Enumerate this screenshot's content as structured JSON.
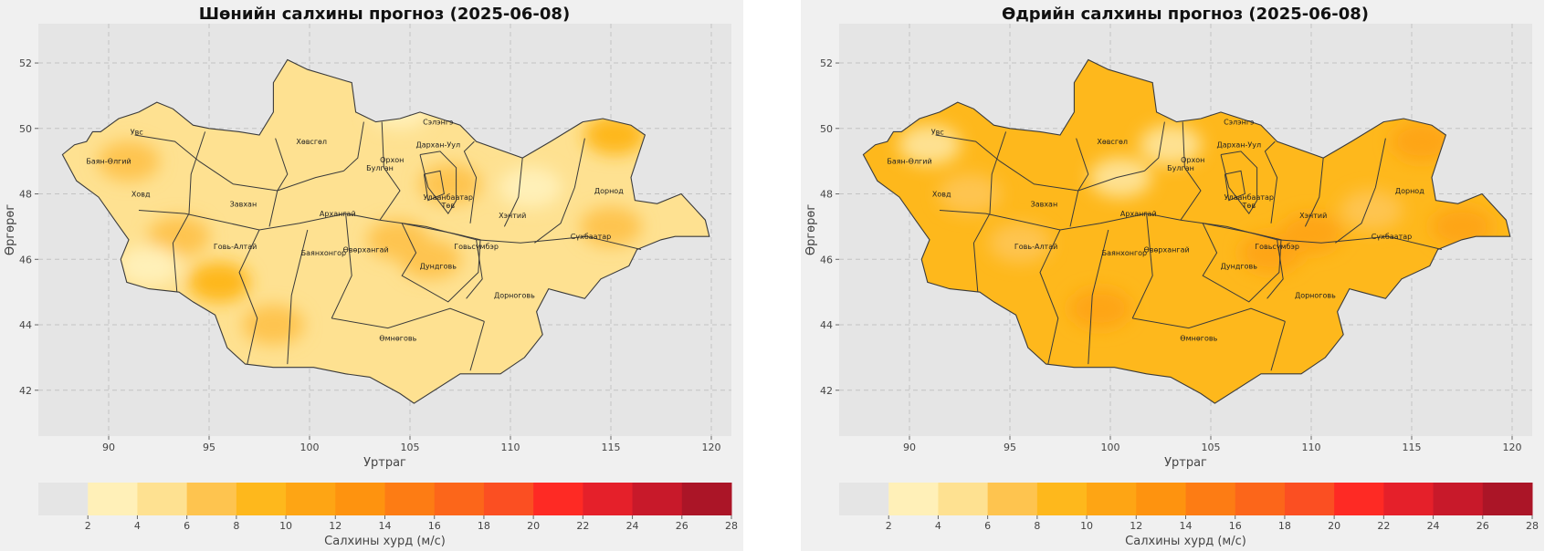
{
  "panels": [
    {
      "id": "night",
      "title": "Шөнийн салхины прогноз (2025-06-08)",
      "base_color": "#fee191",
      "patches": [
        {
          "lon": 104.5,
          "lat": 50.6,
          "c": "#fff0b8"
        },
        {
          "lon": 111,
          "lat": 48.2,
          "c": "#fff0b8"
        },
        {
          "lon": 93.5,
          "lat": 46.7,
          "c": "#fec44f"
        },
        {
          "lon": 95.5,
          "lat": 45.3,
          "c": "#feb81c"
        },
        {
          "lon": 98.2,
          "lat": 44,
          "c": "#fec44f"
        },
        {
          "lon": 106,
          "lat": 46,
          "c": "#fec44f"
        },
        {
          "lon": 115,
          "lat": 47,
          "c": "#fec44f"
        },
        {
          "lon": 104.4,
          "lat": 46.6,
          "c": "#fec44f"
        },
        {
          "lon": 107,
          "lat": 48.3,
          "c": "#fec44f"
        },
        {
          "lon": 115.2,
          "lat": 49.8,
          "c": "#feb81c"
        },
        {
          "lon": 91,
          "lat": 49,
          "c": "#fec44f"
        },
        {
          "lon": 92,
          "lat": 45.8,
          "c": "#fff0b8"
        }
      ]
    },
    {
      "id": "day",
      "title": "Өдрийн салхины прогноз (2025-06-08)",
      "base_color": "#feb81c",
      "patches": [
        {
          "lon": 103,
          "lat": 49.5,
          "c": "#fee191"
        },
        {
          "lon": 91,
          "lat": 49.5,
          "c": "#fee191"
        },
        {
          "lon": 100.5,
          "lat": 48.5,
          "c": "#fee191"
        },
        {
          "lon": 93,
          "lat": 48,
          "c": "#fec44f"
        },
        {
          "lon": 95.5,
          "lat": 46.5,
          "c": "#fec44f"
        },
        {
          "lon": 113,
          "lat": 47.5,
          "c": "#fec44f"
        },
        {
          "lon": 108,
          "lat": 46.2,
          "c": "#fea514"
        },
        {
          "lon": 110,
          "lat": 46.8,
          "c": "#fea514"
        },
        {
          "lon": 117.5,
          "lat": 47,
          "c": "#fea514"
        },
        {
          "lon": 115.5,
          "lat": 49.6,
          "c": "#fea514"
        },
        {
          "lon": 99.5,
          "lat": 44.5,
          "c": "#fea514"
        }
      ]
    }
  ],
  "map": {
    "xlabel": "Уртраг",
    "ylabel": "Өргөрөг",
    "xticks": [
      90,
      95,
      100,
      105,
      110,
      115,
      120
    ],
    "yticks": [
      42,
      44,
      46,
      48,
      50,
      52
    ],
    "lon_range": [
      86.5,
      121
    ],
    "lat_range": [
      40.6,
      53.2
    ],
    "outline": [
      [
        87.7,
        49.2
      ],
      [
        88.3,
        49.5
      ],
      [
        88.9,
        49.6
      ],
      [
        89.2,
        49.9
      ],
      [
        89.6,
        49.9
      ],
      [
        90.5,
        50.3
      ],
      [
        91.5,
        50.5
      ],
      [
        92.4,
        50.8
      ],
      [
        93.2,
        50.6
      ],
      [
        94.2,
        50.1
      ],
      [
        95,
        50
      ],
      [
        96.5,
        49.9
      ],
      [
        97.5,
        49.8
      ],
      [
        98.2,
        50.5
      ],
      [
        98.2,
        51.4
      ],
      [
        98.9,
        52.1
      ],
      [
        99.9,
        51.8
      ],
      [
        101,
        51.6
      ],
      [
        102.1,
        51.4
      ],
      [
        102.3,
        50.5
      ],
      [
        103.3,
        50.2
      ],
      [
        104.5,
        50.3
      ],
      [
        105.5,
        50.5
      ],
      [
        106.5,
        50.3
      ],
      [
        107.5,
        50.1
      ],
      [
        108.3,
        49.6
      ],
      [
        110.6,
        49.1
      ],
      [
        112,
        49.6
      ],
      [
        113.6,
        50.2
      ],
      [
        114.6,
        50.3
      ],
      [
        116,
        50.1
      ],
      [
        116.7,
        49.8
      ],
      [
        116,
        48.5
      ],
      [
        116.2,
        47.8
      ],
      [
        117.3,
        47.7
      ],
      [
        118.5,
        48
      ],
      [
        119.7,
        47.2
      ],
      [
        119.9,
        46.7
      ],
      [
        118.2,
        46.7
      ],
      [
        117.5,
        46.6
      ],
      [
        116.3,
        46.3
      ],
      [
        115.9,
        45.8
      ],
      [
        114.5,
        45.4
      ],
      [
        113.7,
        44.8
      ],
      [
        112.5,
        45
      ],
      [
        111.9,
        45.1
      ],
      [
        111.3,
        44.4
      ],
      [
        111.6,
        43.7
      ],
      [
        110.7,
        43
      ],
      [
        109.5,
        42.5
      ],
      [
        107.5,
        42.5
      ],
      [
        105.2,
        41.6
      ],
      [
        104.5,
        41.9
      ],
      [
        103,
        42.4
      ],
      [
        101.8,
        42.5
      ],
      [
        100.2,
        42.7
      ],
      [
        98.2,
        42.7
      ],
      [
        96.8,
        42.8
      ],
      [
        95.9,
        43.3
      ],
      [
        95.3,
        44.3
      ],
      [
        94.2,
        44.7
      ],
      [
        93.5,
        45
      ],
      [
        92,
        45.1
      ],
      [
        90.9,
        45.3
      ],
      [
        90.6,
        46
      ],
      [
        91,
        46.6
      ],
      [
        90.3,
        47.2
      ],
      [
        89.5,
        47.9
      ],
      [
        88.4,
        48.4
      ],
      [
        87.7,
        49.2
      ]
    ],
    "boundaries": [
      [
        [
          91.5,
          47.5
        ],
        [
          93.8,
          47.4
        ],
        [
          95.3,
          47.2
        ],
        [
          97.5,
          46.9
        ],
        [
          99.5,
          47.1
        ],
        [
          101.8,
          47.4
        ],
        [
          103.5,
          47.2
        ],
        [
          105.8,
          47
        ],
        [
          108.3,
          46.6
        ],
        [
          110.5,
          46.5
        ],
        [
          112.2,
          46.6
        ],
        [
          113.8,
          46.7
        ],
        [
          116.5,
          46.3
        ]
      ],
      [
        [
          91.3,
          49.8
        ],
        [
          93.3,
          49.6
        ],
        [
          94.5,
          49
        ],
        [
          96.2,
          48.3
        ],
        [
          98.4,
          48.1
        ],
        [
          100.3,
          48.5
        ],
        [
          101.7,
          48.7
        ]
      ],
      [
        [
          94.8,
          49.9
        ],
        [
          94.1,
          48.6
        ],
        [
          94,
          47.4
        ],
        [
          93.2,
          46.5
        ],
        [
          93.4,
          45
        ]
      ],
      [
        [
          98.3,
          49.7
        ],
        [
          98.9,
          48.6
        ],
        [
          98.4,
          48.1
        ],
        [
          98,
          47
        ]
      ],
      [
        [
          97.5,
          46.9
        ],
        [
          96.5,
          45.6
        ],
        [
          97.4,
          44.2
        ],
        [
          96.9,
          42.8
        ]
      ],
      [
        [
          99.9,
          46.9
        ],
        [
          99.1,
          44.9
        ],
        [
          98.9,
          42.8
        ]
      ],
      [
        [
          101.8,
          47.4
        ],
        [
          102.1,
          45.5
        ],
        [
          101.1,
          44.2
        ]
      ],
      [
        [
          101.1,
          44.2
        ],
        [
          103.9,
          43.9
        ],
        [
          107,
          44.5
        ],
        [
          108.7,
          44.1
        ]
      ],
      [
        [
          102.7,
          50.2
        ],
        [
          102.4,
          49.1
        ],
        [
          101.7,
          48.7
        ]
      ],
      [
        [
          103.6,
          50.2
        ],
        [
          103.7,
          48.8
        ],
        [
          104.5,
          48.1
        ],
        [
          103.5,
          47.2
        ]
      ],
      [
        [
          104.6,
          47.1
        ],
        [
          105.3,
          46.2
        ],
        [
          104.6,
          45.5
        ],
        [
          106.9,
          44.7
        ],
        [
          108.4,
          45.6
        ],
        [
          108.5,
          46.6
        ],
        [
          107.1,
          46.8
        ],
        [
          104.6,
          47.1
        ]
      ],
      [
        [
          105.5,
          49.2
        ],
        [
          106.5,
          49.3
        ],
        [
          107.3,
          48.8
        ],
        [
          107.3,
          47.8
        ],
        [
          106.9,
          47.4
        ],
        [
          105.9,
          48.2
        ],
        [
          105.5,
          49.2
        ]
      ],
      [
        [
          108.2,
          49.6
        ],
        [
          107.7,
          49.3
        ],
        [
          108.3,
          48.5
        ],
        [
          108,
          47.1
        ]
      ],
      [
        [
          110.6,
          49.1
        ],
        [
          110.4,
          47.9
        ],
        [
          109.7,
          47
        ]
      ],
      [
        [
          113.7,
          49.7
        ],
        [
          113.2,
          48.2
        ],
        [
          112.5,
          47.1
        ],
        [
          111.2,
          46.5
        ]
      ],
      [
        [
          108.3,
          46.6
        ],
        [
          108.6,
          45.4
        ],
        [
          107.8,
          44.8
        ]
      ],
      [
        [
          108.7,
          44.1
        ],
        [
          108,
          42.6
        ]
      ],
      [
        [
          105.7,
          48.6
        ],
        [
          106.5,
          48.7
        ],
        [
          106.7,
          48
        ],
        [
          105.9,
          47.8
        ],
        [
          105.7,
          48.6
        ]
      ]
    ],
    "provinces": [
      {
        "name": "Увс",
        "lon": 91.4,
        "lat": 49.9
      },
      {
        "name": "Баян-Өлгий",
        "lon": 90,
        "lat": 49
      },
      {
        "name": "Ховд",
        "lon": 91.6,
        "lat": 48
      },
      {
        "name": "Завхан",
        "lon": 96.7,
        "lat": 47.7
      },
      {
        "name": "Хөвсгөл",
        "lon": 100.1,
        "lat": 49.6
      },
      {
        "name": "Архангай",
        "lon": 101.4,
        "lat": 47.4
      },
      {
        "name": "Говь-Алтай",
        "lon": 96.3,
        "lat": 46.4
      },
      {
        "name": "Баянхонгор",
        "lon": 100.7,
        "lat": 46.2
      },
      {
        "name": "Өвөрхангай",
        "lon": 102.8,
        "lat": 46.3
      },
      {
        "name": "Булган",
        "lon": 103.5,
        "lat": 48.8
      },
      {
        "name": "Орхон",
        "lon": 104.1,
        "lat": 49.05
      },
      {
        "name": "Сэлэнгэ",
        "lon": 106.4,
        "lat": 50.2
      },
      {
        "name": "Дархан-Уул",
        "lon": 106.4,
        "lat": 49.5
      },
      {
        "name": "Улаанбаатар",
        "lon": 106.9,
        "lat": 47.9
      },
      {
        "name": "Төв",
        "lon": 106.9,
        "lat": 47.65
      },
      {
        "name": "Хэнтий",
        "lon": 110.1,
        "lat": 47.35
      },
      {
        "name": "Дорнод",
        "lon": 114.9,
        "lat": 48.1
      },
      {
        "name": "Сүхбаатар",
        "lon": 114,
        "lat": 46.7
      },
      {
        "name": "Дундговь",
        "lon": 106.4,
        "lat": 45.8
      },
      {
        "name": "Говьсүмбэр",
        "lon": 108.3,
        "lat": 46.4
      },
      {
        "name": "Дорноговь",
        "lon": 110.2,
        "lat": 44.9
      },
      {
        "name": "Өмнөговь",
        "lon": 104.4,
        "lat": 43.6
      }
    ]
  },
  "colorbar": {
    "label": "Салхины хурд (м/с)",
    "ticks": [
      2,
      4,
      6,
      8,
      10,
      12,
      14,
      16,
      18,
      20,
      22,
      24,
      26,
      28
    ],
    "bins": [
      {
        "from": 0,
        "to": 2,
        "color": "#e5e5e5"
      },
      {
        "from": 2,
        "to": 4,
        "color": "#fff0b8"
      },
      {
        "from": 4,
        "to": 6,
        "color": "#fee191"
      },
      {
        "from": 6,
        "to": 8,
        "color": "#fec44f"
      },
      {
        "from": 8,
        "to": 10,
        "color": "#feb81c"
      },
      {
        "from": 10,
        "to": 12,
        "color": "#fea514"
      },
      {
        "from": 12,
        "to": 14,
        "color": "#fe930f"
      },
      {
        "from": 14,
        "to": 16,
        "color": "#fd7c14"
      },
      {
        "from": 16,
        "to": 18,
        "color": "#fc661a"
      },
      {
        "from": 18,
        "to": 20,
        "color": "#fb4f22"
      },
      {
        "from": 20,
        "to": 22,
        "color": "#fe2a24"
      },
      {
        "from": 22,
        "to": 24,
        "color": "#e5202a"
      },
      {
        "from": 24,
        "to": 26,
        "color": "#c8192a"
      },
      {
        "from": 26,
        "to": 28,
        "color": "#ab1527"
      }
    ]
  }
}
